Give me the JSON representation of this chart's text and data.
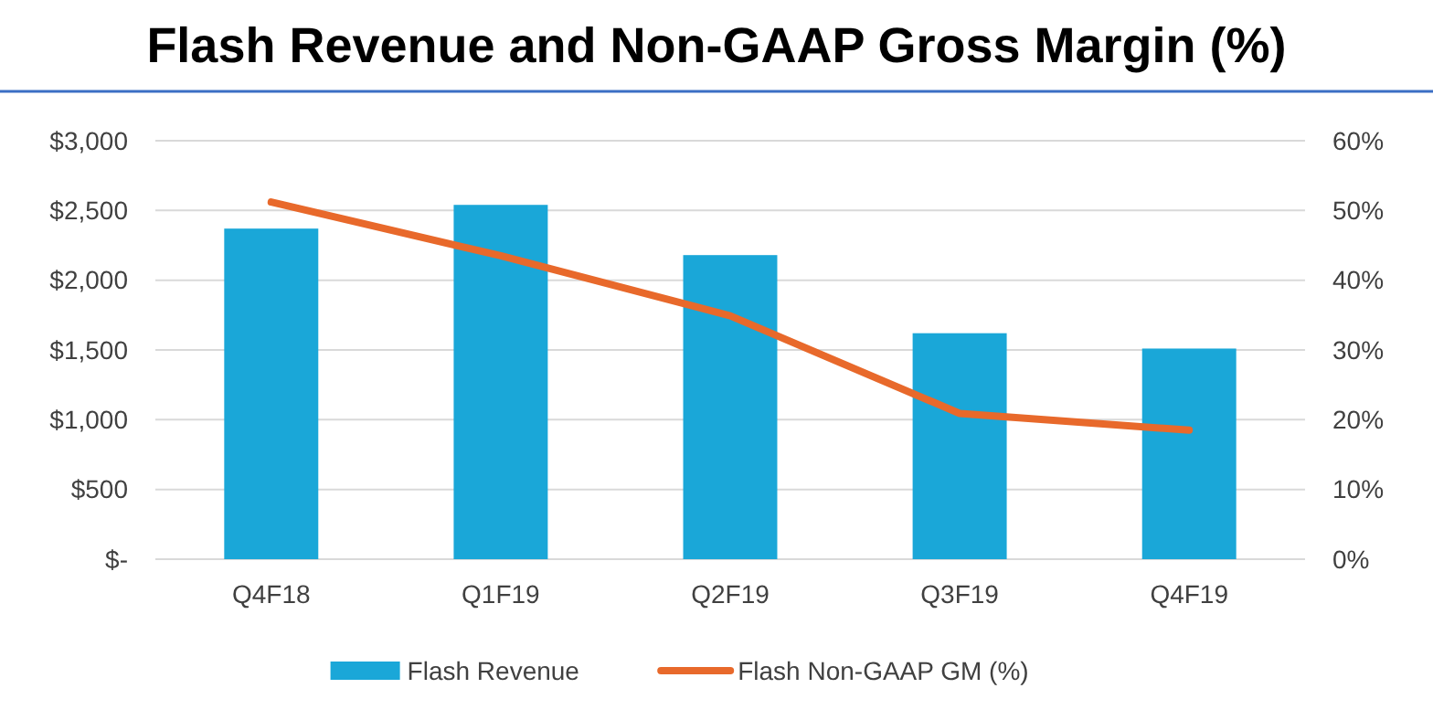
{
  "chart_data": {
    "type": "bar",
    "title": "Flash Revenue and Non-GAAP Gross Margin (%)",
    "categories": [
      "Q4F18",
      "Q1F19",
      "Q2F19",
      "Q3F19",
      "Q4F19"
    ],
    "series": [
      {
        "name": "Flash Revenue",
        "color": "#1aa7d8",
        "values": [
          2370,
          2540,
          2180,
          1620,
          1510
        ]
      },
      {
        "name": "Flash Non-GAAP GM (%)",
        "type": "line",
        "axis": "y2",
        "color": "#e8692b",
        "values": [
          51.2,
          43.5,
          34.9,
          20.9,
          18.5
        ]
      }
    ],
    "ylim": [
      0,
      3000
    ],
    "yticks": [
      {
        "value": 0,
        "label": "$-"
      },
      {
        "value": 500,
        "label": "$500"
      },
      {
        "value": 1000,
        "label": "$1,000"
      },
      {
        "value": 1500,
        "label": "$1,500"
      },
      {
        "value": 2000,
        "label": "$2,000"
      },
      {
        "value": 2500,
        "label": "$2,500"
      },
      {
        "value": 3000,
        "label": "$3,000"
      }
    ],
    "y2lim": [
      0,
      60
    ],
    "y2ticks": [
      {
        "value": 0,
        "label": "0%"
      },
      {
        "value": 10,
        "label": "10%"
      },
      {
        "value": 20,
        "label": "20%"
      },
      {
        "value": 30,
        "label": "30%"
      },
      {
        "value": 40,
        "label": "40%"
      },
      {
        "value": 50,
        "label": "50%"
      },
      {
        "value": 60,
        "label": "60%"
      }
    ],
    "grid": "y",
    "legend": "bottom",
    "marker": "none",
    "line_style": "solid"
  }
}
